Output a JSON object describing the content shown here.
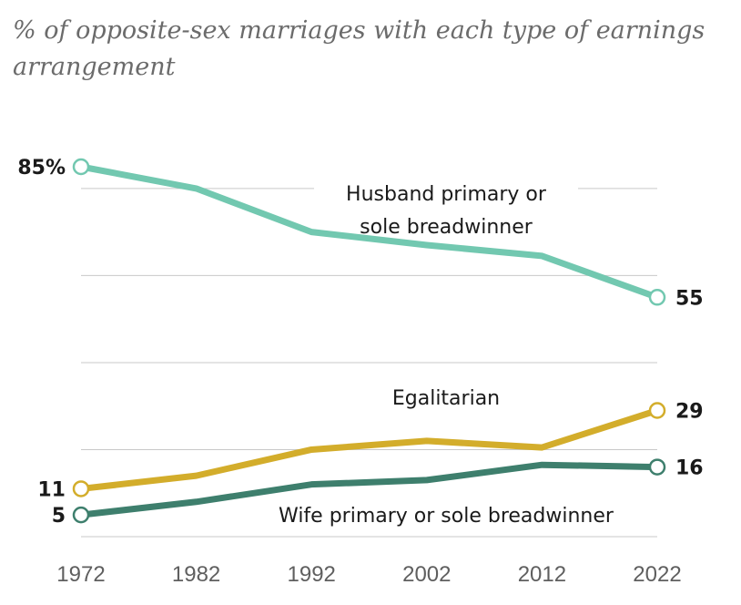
{
  "chart_data": {
    "type": "line",
    "title": "% of opposite-sex marriages with each type of earnings arrangement",
    "x": [
      1972,
      1982,
      1992,
      2002,
      2012,
      2022
    ],
    "x_tick_labels": [
      "1972",
      "1982",
      "1992",
      "2002",
      "2012",
      "2022"
    ],
    "ylim": [
      0,
      85
    ],
    "grid": true,
    "series": [
      {
        "name": "Husband primary or sole breadwinner",
        "label_lines": [
          "Husband primary or",
          "sole breadwinner"
        ],
        "color": "#72c8b0",
        "values": [
          85,
          80,
          70,
          67,
          64.5,
          55
        ],
        "start_label": "85%",
        "end_label": "55"
      },
      {
        "name": "Egalitarian",
        "label_lines": [
          "Egalitarian"
        ],
        "color": "#d3ad2b",
        "values": [
          11,
          14,
          20,
          22,
          20.5,
          29
        ],
        "start_label": "11",
        "end_label": "29"
      },
      {
        "name": "Wife primary or sole breadwinner",
        "label_lines": [
          "Wife primary or sole breadwinner"
        ],
        "color": "#3e7f6d",
        "values": [
          5,
          8,
          12,
          13,
          16.5,
          16
        ],
        "start_label": "5",
        "end_label": "16"
      }
    ]
  }
}
